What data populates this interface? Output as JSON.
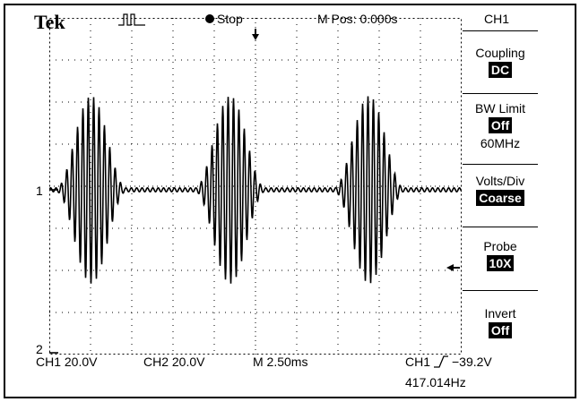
{
  "header": {
    "brand": "Tek",
    "trigger_status_icon": "pulse-icon",
    "acq_state": "Stop",
    "mpos_label": "M Pos: 0.000s",
    "menu_title": "CH1"
  },
  "menu": {
    "coupling": {
      "label": "Coupling",
      "value": "DC"
    },
    "bw_limit": {
      "label": "BW Limit",
      "value": "Off",
      "sub": "60MHz"
    },
    "volts_div": {
      "label": "Volts/Div",
      "value": "Coarse"
    },
    "probe": {
      "label": "Probe",
      "value": "10X"
    },
    "invert": {
      "label": "Invert",
      "value": "Off"
    }
  },
  "markers": {
    "ch1": "1",
    "ch2": "2"
  },
  "footer": {
    "ch1_scale": "CH1  20.0V",
    "ch2_scale": "CH2  20.0V",
    "timebase": "M 2.50ms",
    "trigger_source": "CH1",
    "trigger_level": "−39.2V",
    "frequency": "417.014Hz"
  },
  "colors": {
    "trace": "#000000",
    "grid": "#000000",
    "background": "#ffffff"
  }
}
